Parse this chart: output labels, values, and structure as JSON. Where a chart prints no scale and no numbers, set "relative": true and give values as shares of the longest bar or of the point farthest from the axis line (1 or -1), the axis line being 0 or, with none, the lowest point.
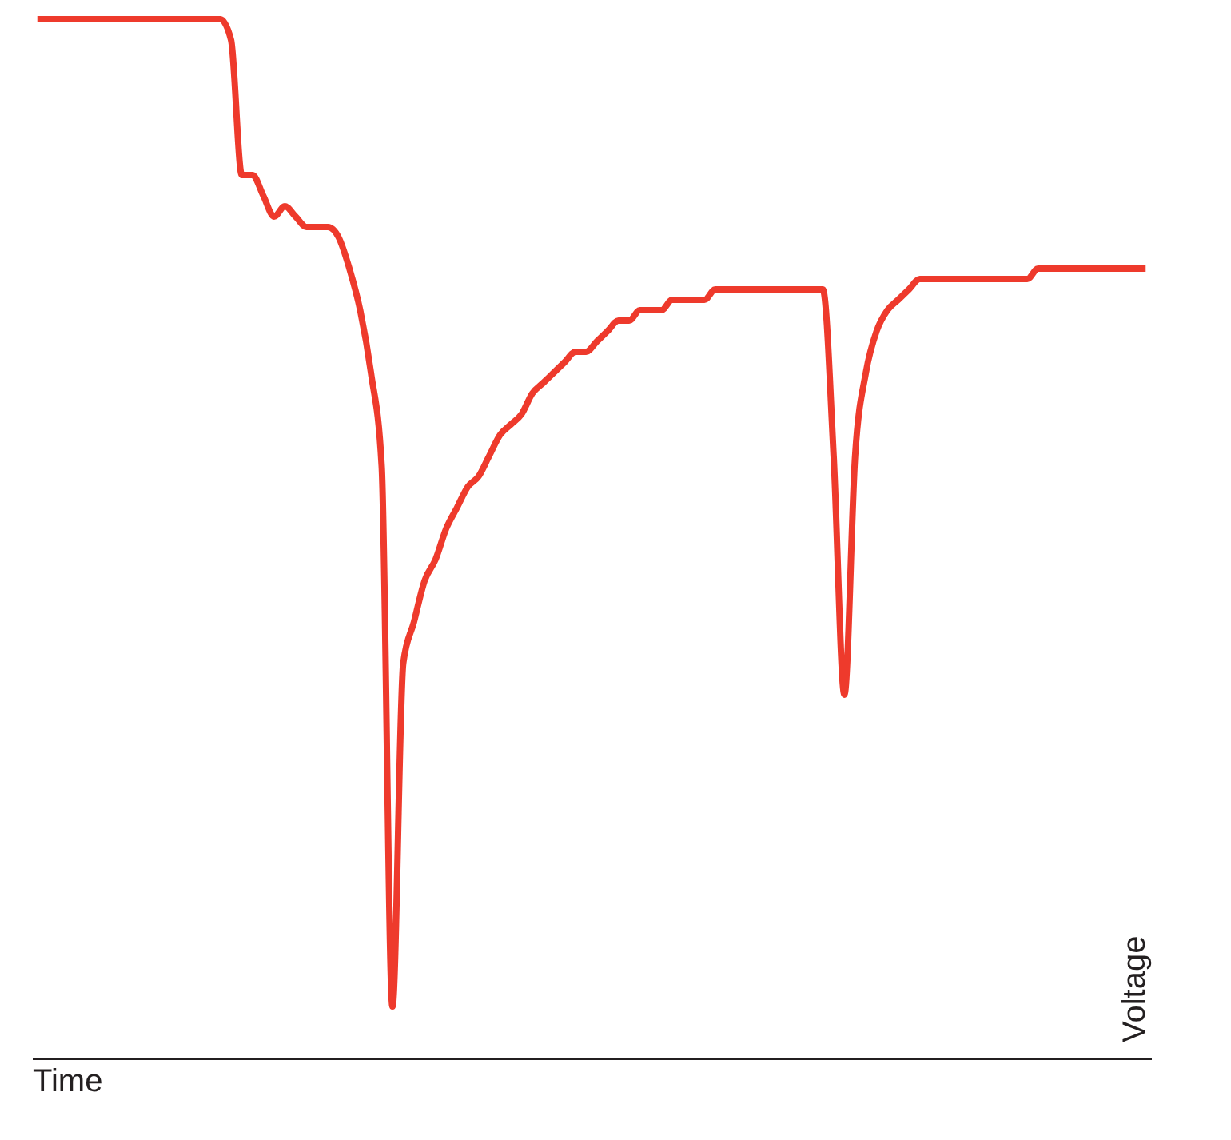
{
  "chart_data": {
    "type": "line",
    "relative": true,
    "xlabel": "Time",
    "ylabel": "Voltage",
    "categories": [
      null,
      null,
      null,
      null,
      null,
      null,
      null,
      null,
      null,
      null,
      null,
      null,
      null,
      null,
      null,
      null,
      null,
      null,
      null,
      null,
      null,
      null,
      null,
      null,
      null,
      null,
      null,
      null,
      null,
      null,
      null,
      null,
      null,
      null,
      null,
      null,
      null,
      null,
      null,
      null,
      null,
      null,
      null,
      null,
      null,
      null,
      null,
      null,
      null,
      null,
      null,
      null,
      null,
      null,
      null,
      null,
      null,
      null,
      null,
      null,
      null,
      null,
      null,
      null,
      null,
      null,
      null,
      null,
      null,
      null,
      null,
      null,
      null,
      null,
      null,
      null,
      null,
      null,
      null,
      null,
      null,
      null,
      null,
      null,
      null,
      null,
      null,
      null,
      null,
      null,
      null,
      null,
      null,
      null,
      null,
      null,
      null,
      null,
      null,
      null,
      null,
      null,
      null,
      null
    ],
    "series": [
      {
        "color": "#ee3a2c",
        "values": [
          1,
          1,
          1,
          1,
          1,
          1,
          1,
          1,
          1,
          1,
          1,
          1,
          1,
          1,
          1,
          1,
          1,
          1,
          0.98,
          0.85,
          0.85,
          0.83,
          0.81,
          0.82,
          0.81,
          0.8,
          0.8,
          0.8,
          0.79,
          0.76,
          0.72,
          0.66,
          0.57,
          0.05,
          0.38,
          0.42,
          0.46,
          0.48,
          0.51,
          0.53,
          0.55,
          0.56,
          0.58,
          0.6,
          0.61,
          0.62,
          0.64,
          0.65,
          0.66,
          0.67,
          0.68,
          0.68,
          0.69,
          0.7,
          0.71,
          0.71,
          0.72,
          0.72,
          0.72,
          0.73,
          0.73,
          0.73,
          0.73,
          0.74,
          0.74,
          0.74,
          0.74,
          0.74,
          0.74,
          0.74,
          0.74,
          0.74,
          0.74,
          0.74,
          0.58,
          0.35,
          0.58,
          0.66,
          0.7,
          0.72,
          0.73,
          0.74,
          0.75,
          0.75,
          0.75,
          0.75,
          0.75,
          0.75,
          0.75,
          0.75,
          0.75,
          0.75,
          0.75,
          0.76,
          0.76,
          0.76,
          0.76,
          0.76,
          0.76,
          0.76,
          0.76,
          0.76,
          0.76,
          0.76
        ]
      }
    ]
  }
}
